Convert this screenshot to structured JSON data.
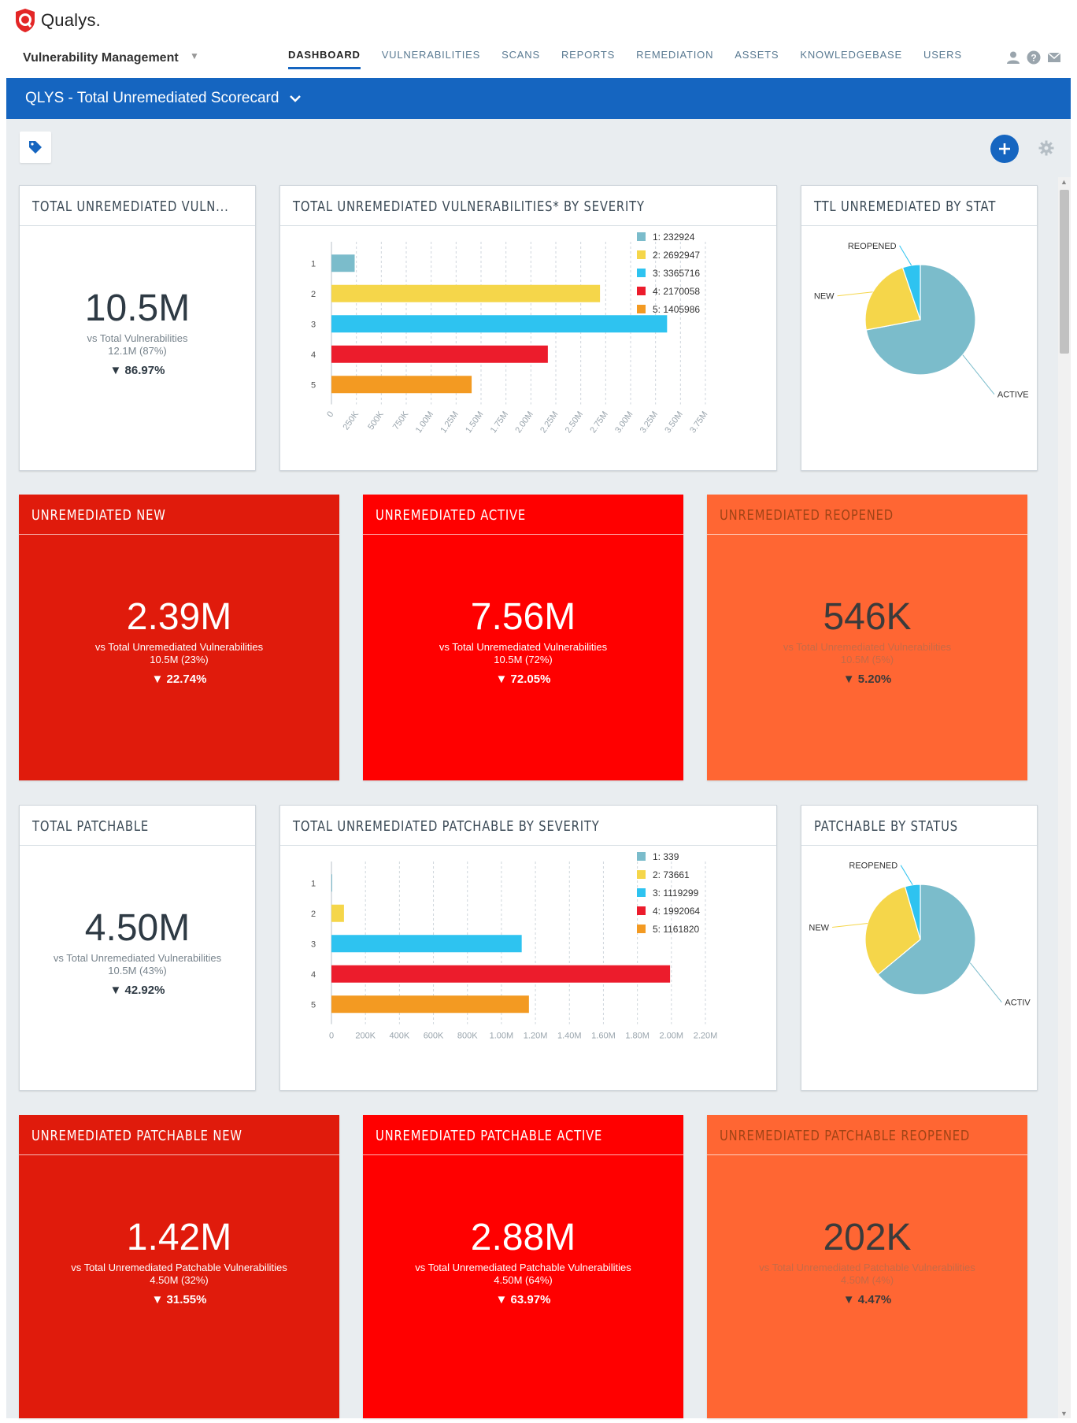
{
  "brand": {
    "logo_text": "Qualys."
  },
  "app": {
    "title": "Vulnerability Management"
  },
  "nav": [
    {
      "label": "DASHBOARD"
    },
    {
      "label": "VULNERABILITIES"
    },
    {
      "label": "SCANS"
    },
    {
      "label": "REPORTS"
    },
    {
      "label": "REMEDIATION"
    },
    {
      "label": "ASSETS"
    },
    {
      "label": "KNOWLEDGEBASE"
    },
    {
      "label": "USERS"
    }
  ],
  "header_icons": [
    "user-icon",
    "help-icon",
    "mail-icon"
  ],
  "dashboard": {
    "title": "QLYS - Total Unremediated Scorecard"
  },
  "colors": {
    "severity": [
      "#7bbccb",
      "#f5d64a",
      "#2ec3f0",
      "#ec1c2c",
      "#f39a22"
    ],
    "red_dark": "#e01b0c",
    "red": "#ff0000",
    "orange": "#ff6633",
    "primary": "#1565c0"
  },
  "kpis": {
    "total": {
      "title": "TOTAL UNREMEDIATED VULN...",
      "value": "10.5M",
      "vs": "vs Total Vulnerabilities",
      "base": "12.1M (87%)",
      "delta": "▼ 86.97%"
    },
    "new": {
      "title": "UNREMEDIATED NEW",
      "value": "2.39M",
      "vs": "vs Total Unremediated Vulnerabilities",
      "base": "10.5M (23%)",
      "delta": "▼ 22.74%"
    },
    "active": {
      "title": "UNREMEDIATED ACTIVE",
      "value": "7.56M",
      "vs": "vs Total Unremediated Vulnerabilities",
      "base": "10.5M (72%)",
      "delta": "▼ 72.05%"
    },
    "reopened": {
      "title": "UNREMEDIATED REOPENED",
      "value": "546K",
      "vs": "vs Total Unremediated Vulnerabilities",
      "base": "10.5M (5%)",
      "delta": "▼ 5.20%"
    },
    "patchable": {
      "title": "TOTAL PATCHABLE",
      "value": "4.50M",
      "vs": "vs Total Unremediated Vulnerabilities",
      "base": "10.5M (43%)",
      "delta": "▼ 42.92%"
    },
    "p_new": {
      "title": "UNREMEDIATED PATCHABLE NEW",
      "value": "1.42M",
      "vs": "vs Total Unremediated Patchable Vulnerabilities",
      "base": "4.50M (32%)",
      "delta": "▼ 31.55%"
    },
    "p_active": {
      "title": "UNREMEDIATED PATCHABLE ACTIVE",
      "value": "2.88M",
      "vs": "vs Total Unremediated Patchable Vulnerabilities",
      "base": "4.50M (64%)",
      "delta": "▼ 63.97%"
    },
    "p_reopened": {
      "title": "UNREMEDIATED PATCHABLE REOPENED",
      "value": "202K",
      "vs": "vs Total Unremediated Patchable Vulnerabilities",
      "base": "4.50M (4%)",
      "delta": "▼ 4.47%"
    }
  },
  "chart_titles": {
    "sev1": "TOTAL UNREMEDIATED VULNERABILITIES* BY SEVERITY",
    "stat1": "TTL UNREMEDIATED BY STAT",
    "sev2": "TOTAL UNREMEDIATED PATCHABLE BY SEVERITY",
    "stat2": "PATCHABLE BY STATUS"
  },
  "chart_data": [
    {
      "type": "bar",
      "orientation": "horizontal",
      "title": "TOTAL UNREMEDIATED VULNERABILITIES* BY SEVERITY",
      "categories": [
        "1",
        "2",
        "3",
        "4",
        "5"
      ],
      "values": [
        232924,
        2692947,
        3365716,
        2170058,
        1405986
      ],
      "legend": [
        "1: 232924",
        "2: 2692947",
        "3: 3365716",
        "4: 2170058",
        "5: 1405986"
      ],
      "xlim": [
        0,
        3750000
      ],
      "xticks": [
        "0",
        "250K",
        "500K",
        "750K",
        "1.00M",
        "1.25M",
        "1.50M",
        "1.75M",
        "2.00M",
        "2.25M",
        "2.50M",
        "2.75M",
        "3.00M",
        "3.25M",
        "3.50M",
        "3.75M"
      ],
      "xtick_rotated": true,
      "legend_position": "top-right",
      "grid": true
    },
    {
      "type": "pie",
      "title": "TTL UNREMEDIATED BY STAT",
      "labels": [
        "ACTIVE",
        "NEW",
        "REOPENED"
      ],
      "values": [
        7.56,
        2.39,
        0.546
      ],
      "colors": [
        "#7bbccb",
        "#f5d64a",
        "#2ec3f0"
      ]
    },
    {
      "type": "bar",
      "orientation": "horizontal",
      "title": "TOTAL UNREMEDIATED PATCHABLE BY SEVERITY",
      "categories": [
        "1",
        "2",
        "3",
        "4",
        "5"
      ],
      "values": [
        339,
        73661,
        1119299,
        1992064,
        1161820
      ],
      "legend": [
        "1: 339",
        "2: 73661",
        "3: 1119299",
        "4: 1992064",
        "5: 1161820"
      ],
      "xlim": [
        0,
        2200000
      ],
      "xticks": [
        "0",
        "200K",
        "400K",
        "600K",
        "800K",
        "1.00M",
        "1.20M",
        "1.40M",
        "1.60M",
        "1.80M",
        "2.00M",
        "2.20M"
      ],
      "xtick_rotated": false,
      "legend_position": "top-right",
      "grid": true
    },
    {
      "type": "pie",
      "title": "PATCHABLE BY STATUS",
      "labels": [
        "ACTIVE",
        "NEW",
        "REOPENED"
      ],
      "display_labels": [
        "ACTIV",
        "NEW",
        "REOPENED"
      ],
      "values": [
        2.88,
        1.42,
        0.202
      ],
      "colors": [
        "#7bbccb",
        "#f5d64a",
        "#2ec3f0"
      ]
    }
  ]
}
